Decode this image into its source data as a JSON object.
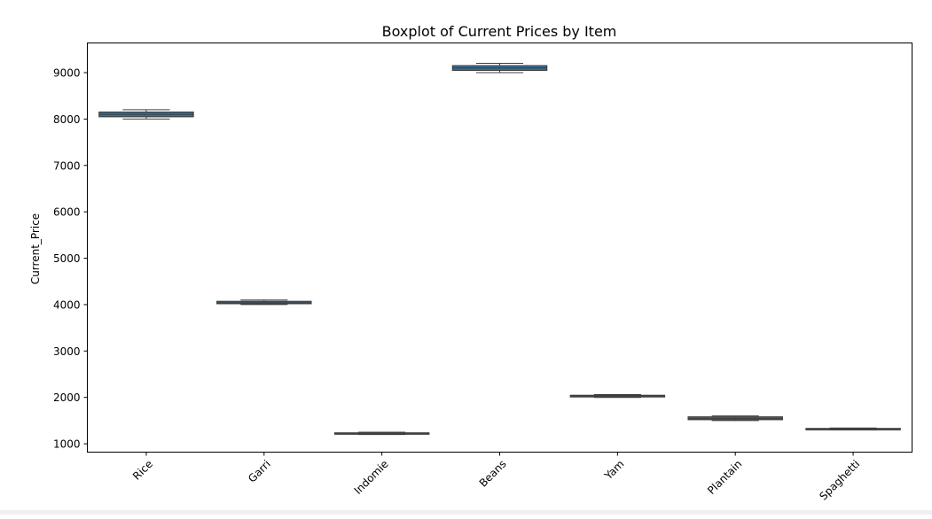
{
  "chart_data": {
    "type": "box",
    "title": "Boxplot of Current Prices by Item",
    "xlabel": "",
    "ylabel": "Current_Price",
    "ylim": [
      820,
      9640
    ],
    "yticks": [
      1000,
      2000,
      3000,
      4000,
      5000,
      6000,
      7000,
      8000,
      9000
    ],
    "ytick_labels": [
      "1000",
      "2000",
      "3000",
      "4000",
      "5000",
      "6000",
      "7000",
      "8000",
      "9000"
    ],
    "grid": false,
    "legend": "none",
    "categories": [
      "Rice",
      "Garri",
      "Indomie",
      "Beans",
      "Yam",
      "Plantain",
      "Spaghetti"
    ],
    "boxes": [
      {
        "min": 8000,
        "q1": 8050,
        "median": 8100,
        "q3": 8150,
        "max": 8200
      },
      {
        "min": 4000,
        "q1": 4020,
        "median": 4040,
        "q3": 4070,
        "max": 4100
      },
      {
        "min": 1200,
        "q1": 1210,
        "median": 1220,
        "q3": 1235,
        "max": 1250
      },
      {
        "min": 9000,
        "q1": 9050,
        "median": 9100,
        "q3": 9150,
        "max": 9200
      },
      {
        "min": 2000,
        "q1": 2010,
        "median": 2030,
        "q3": 2045,
        "max": 2060
      },
      {
        "min": 1500,
        "q1": 1520,
        "median": 1545,
        "q3": 1580,
        "max": 1600
      },
      {
        "min": 1300,
        "q1": 1305,
        "median": 1315,
        "q3": 1330,
        "max": 1340
      }
    ],
    "box_color": "#3274a1",
    "line_color": "#3f3f3f"
  }
}
